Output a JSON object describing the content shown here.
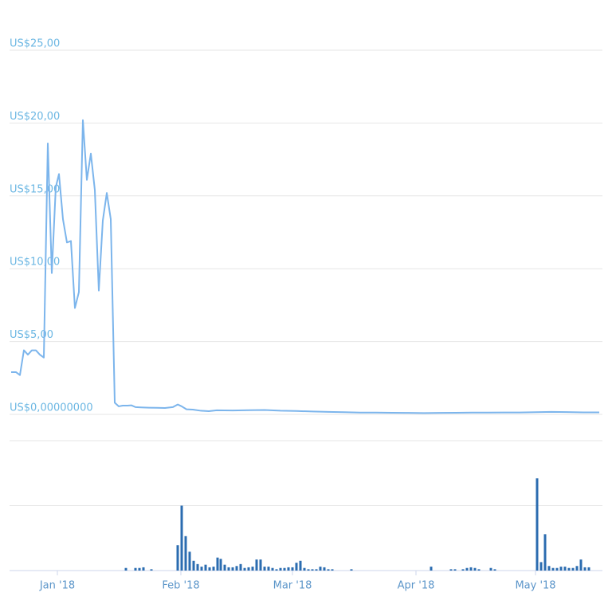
{
  "chart_data": [
    {
      "type": "line",
      "color": "#7cb5ec",
      "grid": true,
      "tick_labels": true,
      "x": [
        -11.6,
        -10.4,
        -9.4,
        -8.4,
        -7.4,
        -6.4,
        -5.4,
        -4.4,
        -3.4,
        -2.4,
        -1.4,
        -0.4,
        0.4,
        1.4,
        2.4,
        3.4,
        4.4,
        5.4,
        6.4,
        7.4,
        8.4,
        9.4,
        10.4,
        11.4,
        12.4,
        13.4,
        14.4,
        15.4,
        16.4,
        17.6,
        18.6,
        19.6,
        21,
        23,
        25,
        27,
        29,
        30.2,
        31.2,
        32.4,
        34,
        36,
        38,
        40,
        44,
        48,
        52,
        56,
        60,
        64,
        68,
        72,
        76,
        80,
        84,
        88,
        92,
        96,
        100,
        104,
        108,
        112,
        116,
        120,
        124,
        128,
        132,
        136
      ],
      "values": [
        2.9,
        2.9,
        2.7,
        4.4,
        4.1,
        4.4,
        4.4,
        4.1,
        3.9,
        18.6,
        9.7,
        15.6,
        16.5,
        13.4,
        11.8,
        11.9,
        7.3,
        8.4,
        20.2,
        16.1,
        17.9,
        15.4,
        8.5,
        13.3,
        15.2,
        13.4,
        0.8,
        0.55,
        0.6,
        0.6,
        0.62,
        0.5,
        0.48,
        0.46,
        0.45,
        0.44,
        0.5,
        0.68,
        0.55,
        0.35,
        0.33,
        0.25,
        0.22,
        0.28,
        0.27,
        0.29,
        0.3,
        0.25,
        0.23,
        0.2,
        0.17,
        0.15,
        0.12,
        0.12,
        0.11,
        0.1,
        0.09,
        0.1,
        0.11,
        0.12,
        0.12,
        0.13,
        0.13,
        0.15,
        0.17,
        0.16,
        0.14,
        0.14
      ],
      "xlim": [
        -11.6,
        136
      ],
      "ylim": [
        0,
        25
      ],
      "yticks": [
        {
          "value": 0,
          "label": "US$0,00000000"
        },
        {
          "value": 5,
          "label": "US$5,00"
        },
        {
          "value": 10,
          "label": "US$10,00"
        },
        {
          "value": 15,
          "label": "US$15,00"
        },
        {
          "value": 20,
          "label": "US$20,00"
        },
        {
          "value": 25,
          "label": "US$25,00"
        }
      ]
    },
    {
      "type": "bar",
      "color": "#2b6cb0",
      "grid": true,
      "tick_labels": false,
      "x": [
        17.2,
        19.6,
        20.6,
        21.6,
        23.6,
        30.2,
        31.2,
        32.2,
        33.2,
        34.2,
        35.2,
        36.2,
        37.2,
        38.2,
        39.2,
        40.2,
        41,
        42,
        43,
        44,
        45,
        46,
        47,
        48,
        49,
        50,
        51,
        52,
        53,
        54,
        55,
        56,
        57,
        58,
        59,
        60,
        61,
        62,
        63,
        64,
        65,
        66,
        67,
        68,
        69,
        73.8,
        93.8,
        98.8,
        99.8,
        101.8,
        102.8,
        103.8,
        104.8,
        105.8,
        108.8,
        109.8,
        120.4,
        121.4,
        122.4,
        123.4,
        124.4,
        125.4,
        126.4,
        127.4,
        128.4,
        129.4,
        130.4,
        131.4,
        132.4,
        133.4
      ],
      "values": [
        0.04,
        0.04,
        0.04,
        0.05,
        0.02,
        0.39,
        1.0,
        0.53,
        0.29,
        0.15,
        0.1,
        0.06,
        0.09,
        0.05,
        0.06,
        0.2,
        0.18,
        0.09,
        0.05,
        0.05,
        0.07,
        0.1,
        0.04,
        0.05,
        0.06,
        0.17,
        0.17,
        0.06,
        0.06,
        0.04,
        0.02,
        0.04,
        0.04,
        0.05,
        0.05,
        0.12,
        0.15,
        0.04,
        0.02,
        0.02,
        0.02,
        0.06,
        0.05,
        0.02,
        0.02,
        0.02,
        0.06,
        0.02,
        0.02,
        0.02,
        0.04,
        0.05,
        0.04,
        0.02,
        0.04,
        0.02,
        1.42,
        0.13,
        0.56,
        0.07,
        0.04,
        0.04,
        0.06,
        0.06,
        0.04,
        0.04,
        0.07,
        0.17,
        0.05,
        0.05
      ],
      "xlim": [
        -11.6,
        136
      ],
      "ylim": [
        0,
        2
      ],
      "yticks": [
        0,
        1,
        2
      ],
      "xticks": [
        {
          "value": 0,
          "label": "Jan '18"
        },
        {
          "value": 31,
          "label": "Feb '18"
        },
        {
          "value": 59,
          "label": "Mar '18"
        },
        {
          "value": 90,
          "label": "Apr '18"
        },
        {
          "value": 120,
          "label": "May '18"
        }
      ]
    }
  ]
}
